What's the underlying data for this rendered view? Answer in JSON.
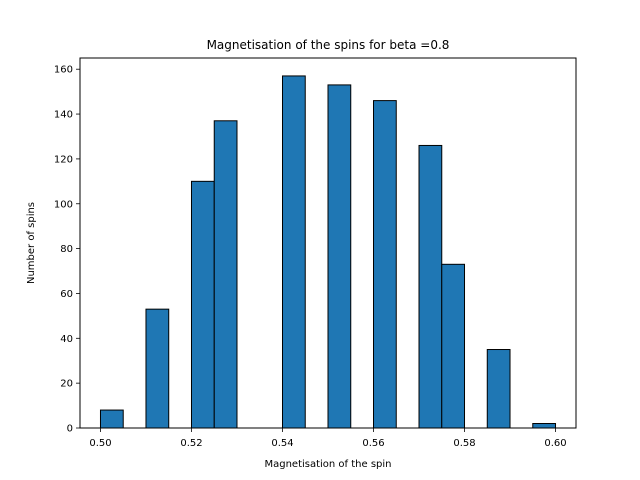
{
  "chart_data": {
    "type": "bar",
    "title": "Magnetisation of the spins for beta =0.8",
    "xlabel": "Magnetisation of the spin",
    "ylabel": "Number of spins",
    "xlim": [
      0.4955,
      0.6045
    ],
    "ylim": [
      0,
      165
    ],
    "xticks": [
      0.5,
      0.52,
      0.54,
      0.56,
      0.58,
      0.6
    ],
    "xtick_labels": [
      "0.50",
      "0.52",
      "0.54",
      "0.56",
      "0.58",
      "0.60"
    ],
    "yticks": [
      0,
      20,
      40,
      60,
      80,
      100,
      120,
      140,
      160
    ],
    "ytick_labels": [
      "0",
      "20",
      "40",
      "60",
      "80",
      "100",
      "120",
      "140",
      "160"
    ],
    "bin_edges": [
      0.5,
      0.505,
      0.51,
      0.515,
      0.52,
      0.525,
      0.53,
      0.535,
      0.54,
      0.545,
      0.55,
      0.555,
      0.56,
      0.565,
      0.57,
      0.575,
      0.58,
      0.585,
      0.59,
      0.595,
      0.6
    ],
    "values": [
      8,
      0,
      53,
      0,
      110,
      137,
      0,
      0,
      157,
      0,
      153,
      0,
      146,
      0,
      126,
      73,
      0,
      35,
      0,
      2
    ],
    "bar_color": "#1f77b4",
    "edge_color": "#000000",
    "grid": false
  }
}
